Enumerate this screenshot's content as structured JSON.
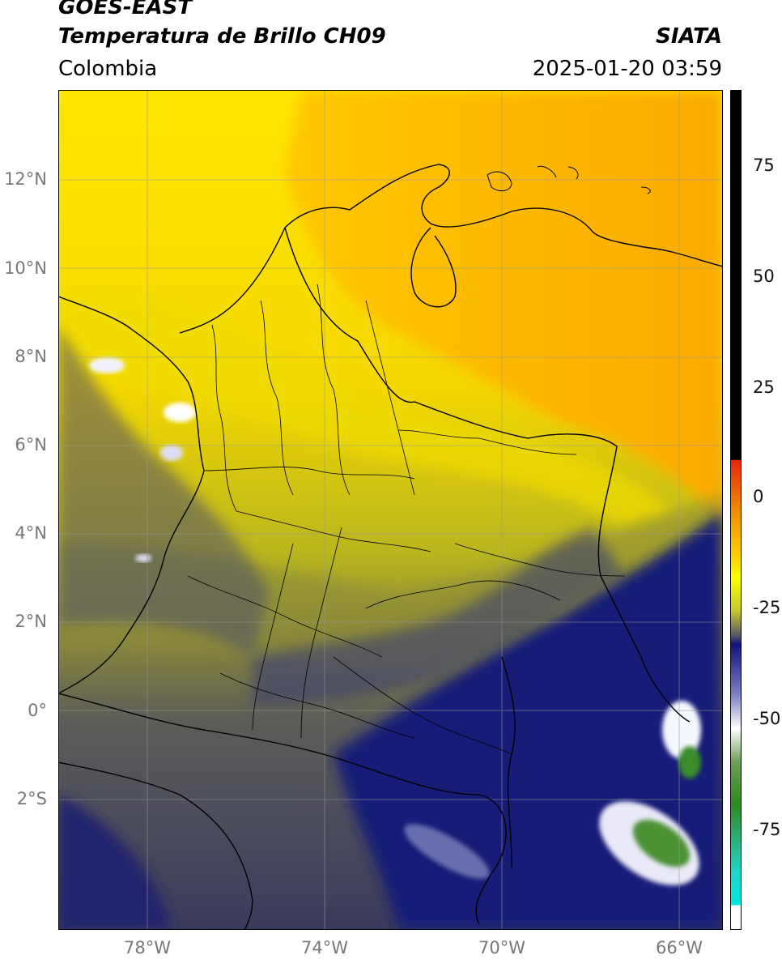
{
  "header": {
    "title_line1": "GOES-EAST",
    "title_line2": "Temperatura de Brillo CH09",
    "region": "Colombia",
    "agency": "SIATA",
    "timestamp": "2025-01-20 03:59"
  },
  "map": {
    "lat_ticks": [
      "12°N",
      "10°N",
      "8°N",
      "6°N",
      "4°N",
      "2°N",
      "0°",
      "2°S"
    ],
    "lon_ticks": [
      "78°W",
      "74°W",
      "70°W",
      "66°W"
    ]
  },
  "colorbar": {
    "ticks": [
      "75",
      "50",
      "25",
      "0",
      "-25",
      "-50",
      "-75"
    ],
    "colors": {
      "black": "#000000",
      "red": "#e8250e",
      "orange": "#f7a400",
      "yellow": "#ffff00",
      "olive": "#b8b81c",
      "gray": "#555566",
      "navy": "#12127a",
      "white": "#ffffff",
      "green": "#2e8a20",
      "teal": "#22d4c8"
    }
  }
}
